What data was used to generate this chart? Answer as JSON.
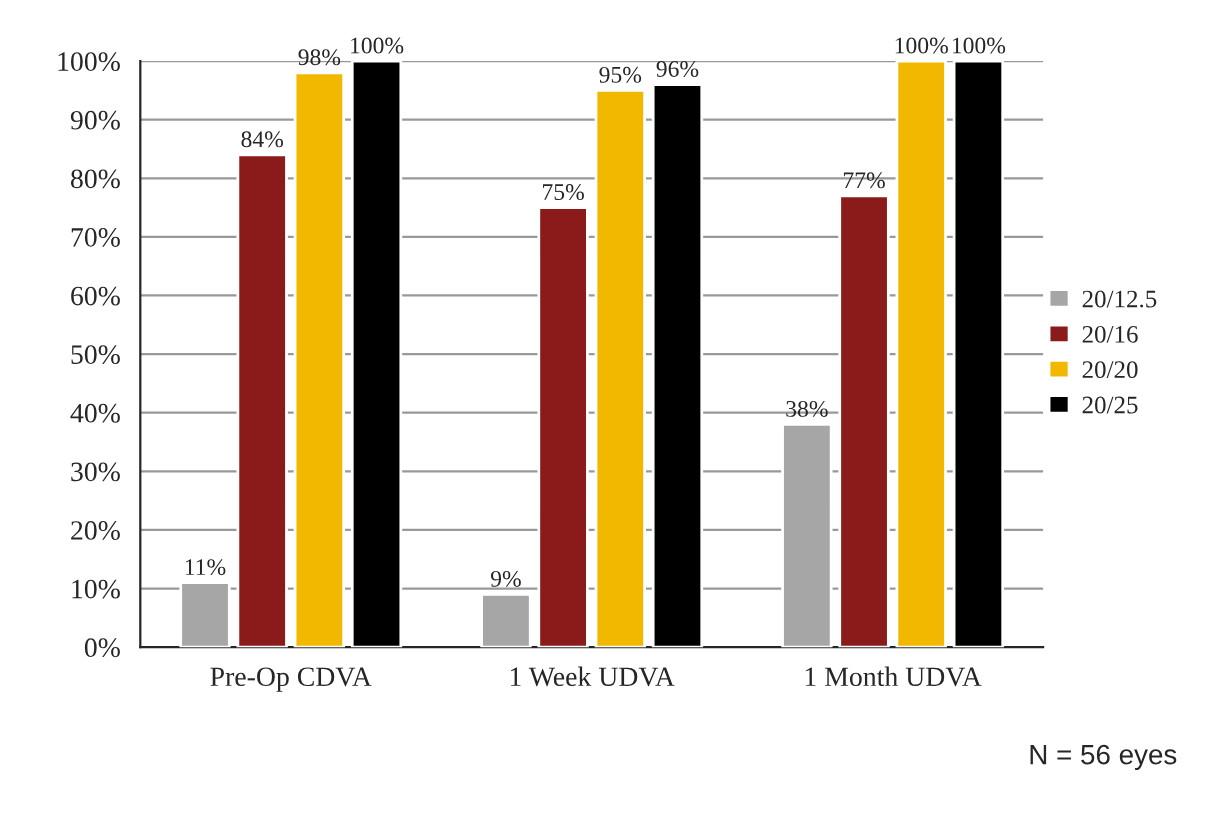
{
  "chart_data": {
    "type": "bar",
    "categories": [
      "Pre-Op CDVA",
      "1 Week UDVA",
      "1 Month UDVA"
    ],
    "series": [
      {
        "name": "20/12.5",
        "color": "#a6a6a6",
        "values": [
          11,
          9,
          38
        ],
        "value_labels": [
          "11%",
          "9%",
          "38%"
        ]
      },
      {
        "name": "20/16",
        "color": "#8b1a1a",
        "values": [
          84,
          75,
          77
        ],
        "value_labels": [
          "84%",
          "75%",
          "77%"
        ]
      },
      {
        "name": "20/20",
        "color": "#f2b800",
        "values": [
          98,
          95,
          100
        ],
        "value_labels": [
          "98%",
          "95%",
          "100%"
        ]
      },
      {
        "name": "20/25",
        "color": "#000000",
        "values": [
          100,
          96,
          100
        ],
        "value_labels": [
          "100%",
          "96%",
          "100%"
        ]
      }
    ],
    "ylim": [
      0,
      100
    ],
    "yticks": [
      {
        "value": 0,
        "label": "0%"
      },
      {
        "value": 10,
        "label": "10%"
      },
      {
        "value": 20,
        "label": "20%"
      },
      {
        "value": 30,
        "label": "30%"
      },
      {
        "value": 40,
        "label": "40%"
      },
      {
        "value": 50,
        "label": "50%"
      },
      {
        "value": 60,
        "label": "60%"
      },
      {
        "value": 70,
        "label": "70%"
      },
      {
        "value": 80,
        "label": "80%"
      },
      {
        "value": 90,
        "label": "90%"
      },
      {
        "value": 100,
        "label": "100%"
      }
    ],
    "grid": "y",
    "legend": "right",
    "annotations": [
      "N = 56 eyes"
    ]
  }
}
